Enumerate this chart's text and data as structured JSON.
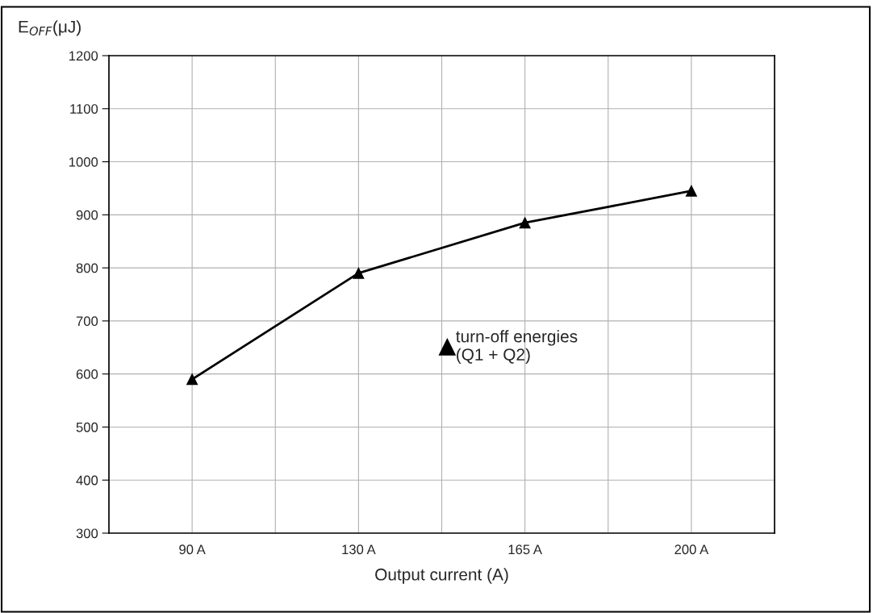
{
  "chart_data": {
    "type": "line",
    "ylabel": "E$_{OFF}$(μJ)",
    "xlabel": "Output current (A)",
    "categories": [
      "90 A",
      "130 A",
      "165 A",
      "200 A"
    ],
    "series": [
      {
        "name": "turn-off energies\n(Q1 + Q2)",
        "color": "#000000",
        "values": [
          590,
          790,
          885,
          945
        ]
      }
    ],
    "ylim": [
      300,
      1200
    ],
    "yticks": [
      300,
      400,
      500,
      600,
      700,
      800,
      900,
      1000,
      1100,
      1200
    ],
    "grid": true,
    "legend": "center",
    "marker": "triangle",
    "line_style": "solid"
  }
}
